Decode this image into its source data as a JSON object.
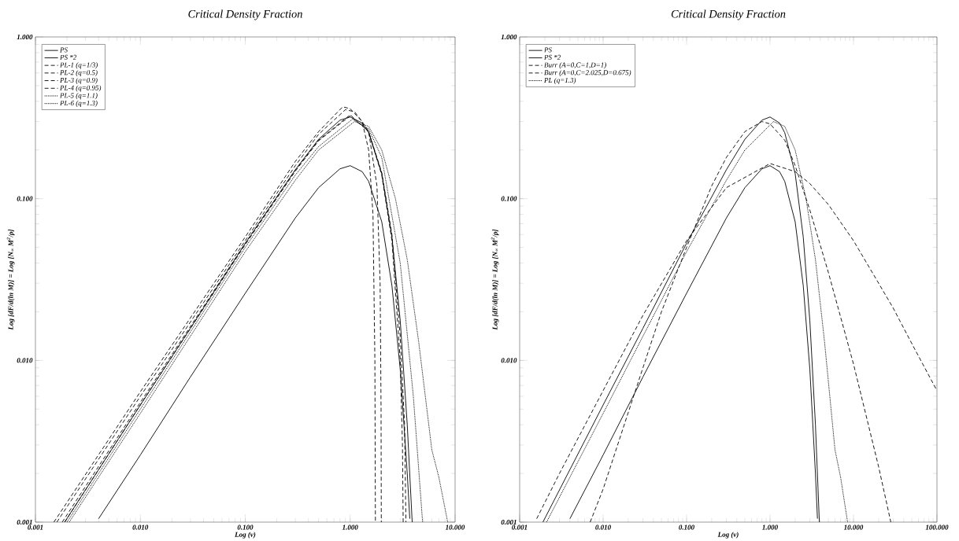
{
  "chart_data": [
    {
      "type": "line",
      "title": "Critical Density Fraction",
      "xlabel": "Log (ν)",
      "ylabel": "Log [dF/d(ln M)] = Log [N$_{∞}$ M$^{2}$/ρ]",
      "log": "xy",
      "legend": "top left",
      "grid": false,
      "xlim": [
        0.001,
        10
      ],
      "ylim": [
        0.001,
        1
      ],
      "xticks": [
        {
          "value": 0.001,
          "label": "0.001"
        },
        {
          "value": 0.01,
          "label": "0.010"
        },
        {
          "value": 0.1,
          "label": "0.100"
        },
        {
          "value": 1,
          "label": "1.000"
        },
        {
          "value": 10,
          "label": "10.000"
        }
      ],
      "yticks": [
        {
          "value": 0.001,
          "label": "0.001"
        },
        {
          "value": 0.01,
          "label": "0.010"
        },
        {
          "value": 0.1,
          "label": "0.100"
        },
        {
          "value": 1,
          "label": "1.000"
        }
      ],
      "series": [
        {
          "name": "PS",
          "color": "#000000",
          "line_style": "solid",
          "x": [
            0.004,
            0.01,
            0.03,
            0.1,
            0.3,
            0.5,
            0.8,
            1,
            1.3,
            1.5,
            2,
            2.5,
            3,
            3.5,
            3.7
          ],
          "values": [
            0.00105,
            0.0026,
            0.0079,
            0.026,
            0.076,
            0.117,
            0.153,
            0.16,
            0.147,
            0.128,
            0.072,
            0.029,
            0.0088,
            0.002,
            0.00105
          ]
        },
        {
          "name": "PS *2",
          "color": "#000000",
          "line_style": "solid",
          "x": [
            0.0019,
            0.01,
            0.03,
            0.1,
            0.3,
            0.5,
            0.8,
            1,
            1.3,
            1.5,
            2,
            2.5,
            3,
            3.5,
            3.9
          ],
          "values": [
            0.001,
            0.0053,
            0.0158,
            0.053,
            0.151,
            0.233,
            0.306,
            0.32,
            0.294,
            0.256,
            0.143,
            0.058,
            0.0176,
            0.004,
            0.001
          ]
        },
        {
          "name": "PL-1 (q=1/3)",
          "color": "#000000",
          "line_style": "dashed",
          "x": [
            0.0015,
            0.01,
            0.1,
            0.3,
            0.5,
            0.85,
            1,
            1.3,
            1.5,
            1.65,
            1.72,
            1.74
          ],
          "values": [
            0.001,
            0.0064,
            0.058,
            0.17,
            0.26,
            0.37,
            0.36,
            0.3,
            0.2,
            0.08,
            0.01,
            0.001
          ]
        },
        {
          "name": "PL-2 (q=0.5)",
          "color": "#000000",
          "line_style": "dashed",
          "x": [
            0.0016,
            0.01,
            0.1,
            0.3,
            0.5,
            0.9,
            1.1,
            1.3,
            1.5,
            1.8,
            1.93,
            1.97,
            1.98
          ],
          "values": [
            0.001,
            0.006,
            0.055,
            0.16,
            0.25,
            0.355,
            0.345,
            0.3,
            0.26,
            0.12,
            0.03,
            0.005,
            0.001
          ]
        },
        {
          "name": "PL-3 (q=0.9)",
          "color": "#000000",
          "line_style": "dashed",
          "x": [
            0.0018,
            0.01,
            0.1,
            0.3,
            0.5,
            1,
            1.5,
            2,
            2.5,
            3,
            3.15,
            3.2
          ],
          "values": [
            0.001,
            0.0055,
            0.053,
            0.15,
            0.23,
            0.33,
            0.26,
            0.14,
            0.055,
            0.01,
            0.003,
            0.001
          ]
        },
        {
          "name": "PL-4 (q=0.95)",
          "color": "#000000",
          "line_style": "dashed",
          "x": [
            0.0019,
            0.01,
            0.1,
            0.3,
            0.5,
            1,
            1.5,
            2,
            2.5,
            3,
            3.3,
            3.4
          ],
          "values": [
            0.001,
            0.0053,
            0.052,
            0.148,
            0.228,
            0.325,
            0.26,
            0.145,
            0.06,
            0.014,
            0.004,
            0.001
          ]
        },
        {
          "name": "PL-5 (q=1.1)",
          "color": "#000000",
          "line_style": "dotted",
          "x": [
            0.002,
            0.01,
            0.1,
            0.3,
            0.5,
            1.05,
            1.5,
            2,
            3,
            4,
            4.9
          ],
          "values": [
            0.001,
            0.005,
            0.05,
            0.14,
            0.21,
            0.31,
            0.27,
            0.18,
            0.04,
            0.006,
            0.001
          ]
        },
        {
          "name": "PL-6 (q=1.3)",
          "color": "#000000",
          "line_style": "dotted",
          "x": [
            0.0021,
            0.01,
            0.1,
            0.3,
            0.5,
            1.1,
            1.5,
            2,
            2.7,
            3.5,
            4.5,
            6,
            7,
            8.5
          ],
          "values": [
            0.001,
            0.0047,
            0.047,
            0.13,
            0.2,
            0.3,
            0.28,
            0.2,
            0.1,
            0.042,
            0.013,
            0.0028,
            0.0019,
            0.001
          ]
        }
      ]
    },
    {
      "type": "line",
      "title": "Critical Density Fraction",
      "xlabel": "Log (ν)",
      "ylabel": "Log [dF/d(ln M)] = Log [N$_{∞}$ M$^{2}$/ρ]",
      "log": "xy",
      "legend": "top left",
      "grid": false,
      "xlim": [
        0.001,
        100
      ],
      "ylim": [
        0.001,
        1
      ],
      "xticks": [
        {
          "value": 0.001,
          "label": "0.001"
        },
        {
          "value": 0.01,
          "label": "0.010"
        },
        {
          "value": 0.1,
          "label": "0.100"
        },
        {
          "value": 1,
          "label": "1.000"
        },
        {
          "value": 10,
          "label": "10.000"
        },
        {
          "value": 100,
          "label": "100.000"
        }
      ],
      "yticks": [
        {
          "value": 0.001,
          "label": "0.001"
        },
        {
          "value": 0.01,
          "label": "0.010"
        },
        {
          "value": 0.1,
          "label": "0.100"
        },
        {
          "value": 1,
          "label": "1.000"
        }
      ],
      "series": [
        {
          "name": "PS",
          "color": "#000000",
          "line_style": "solid",
          "x": [
            0.004,
            0.01,
            0.03,
            0.1,
            0.3,
            0.5,
            0.8,
            1,
            1.3,
            1.5,
            2,
            2.5,
            3,
            3.5,
            3.7
          ],
          "values": [
            0.00105,
            0.0026,
            0.0079,
            0.026,
            0.076,
            0.117,
            0.153,
            0.16,
            0.147,
            0.128,
            0.072,
            0.029,
            0.0088,
            0.002,
            0.00105
          ]
        },
        {
          "name": "PS *2",
          "color": "#000000",
          "line_style": "solid",
          "x": [
            0.0019,
            0.01,
            0.03,
            0.1,
            0.3,
            0.5,
            0.8,
            1,
            1.3,
            1.5,
            2,
            2.5,
            3,
            3.5,
            3.9
          ],
          "values": [
            0.001,
            0.0053,
            0.0158,
            0.053,
            0.151,
            0.233,
            0.306,
            0.32,
            0.294,
            0.256,
            0.143,
            0.058,
            0.0176,
            0.004,
            0.001
          ]
        },
        {
          "name": "Burr (A=0,C=1,D=1)",
          "color": "#000000",
          "line_style": "dashed",
          "x": [
            0.0016,
            0.003,
            0.01,
            0.03,
            0.1,
            0.3,
            1,
            2,
            3,
            5,
            10,
            20,
            30,
            50,
            100
          ],
          "values": [
            0.00105,
            0.002,
            0.0065,
            0.019,
            0.055,
            0.117,
            0.165,
            0.147,
            0.124,
            0.092,
            0.055,
            0.03,
            0.021,
            0.0127,
            0.0065
          ]
        },
        {
          "name": "Burr (A=0,C=2.025,D=0.675)",
          "color": "#000000",
          "line_style": "dashed",
          "x": [
            0.007,
            0.01,
            0.03,
            0.05,
            0.1,
            0.2,
            0.3,
            0.5,
            0.8,
            1,
            1.5,
            2,
            3,
            5,
            10,
            20,
            28
          ],
          "values": [
            0.001,
            0.0016,
            0.009,
            0.02,
            0.05,
            0.12,
            0.18,
            0.26,
            0.3,
            0.29,
            0.23,
            0.16,
            0.085,
            0.035,
            0.0095,
            0.0022,
            0.001
          ]
        },
        {
          "name": "PL (q=1.3)",
          "color": "#000000",
          "line_style": "dotted",
          "x": [
            0.0021,
            0.01,
            0.1,
            0.3,
            0.5,
            1.1,
            1.5,
            2,
            2.7,
            3.5,
            4.5,
            6,
            7,
            8.5
          ],
          "values": [
            0.001,
            0.0047,
            0.047,
            0.13,
            0.2,
            0.3,
            0.28,
            0.2,
            0.1,
            0.042,
            0.013,
            0.0028,
            0.0019,
            0.001
          ]
        }
      ]
    }
  ]
}
